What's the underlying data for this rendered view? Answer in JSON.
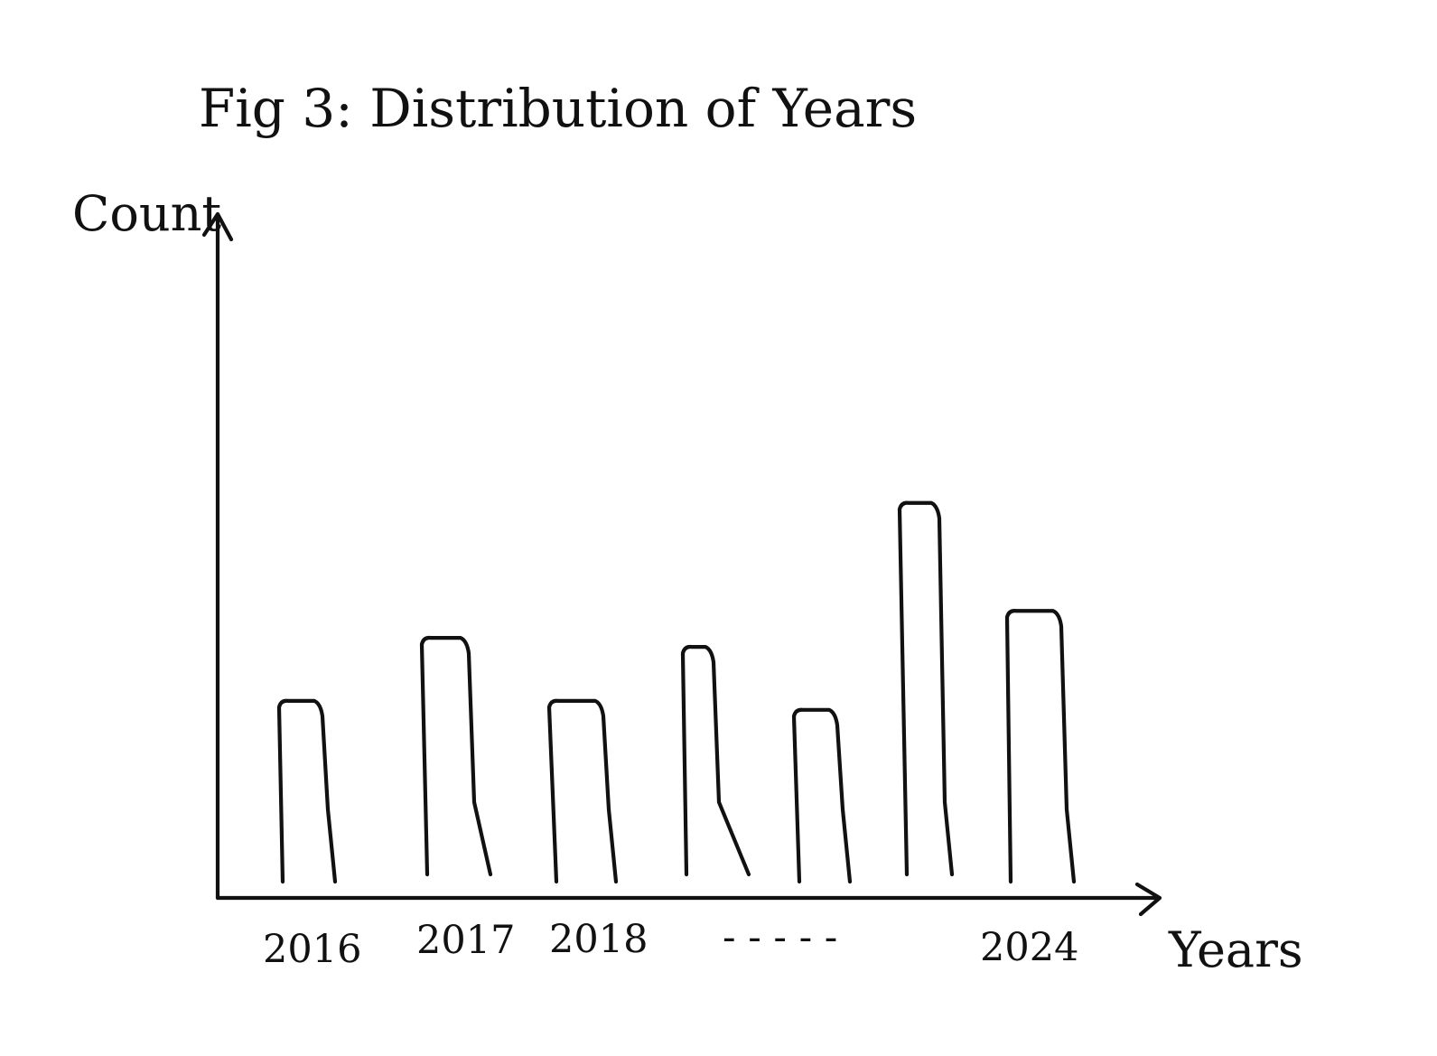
{
  "chart_data": {
    "type": "bar",
    "title": "Fig 3: Distribution of Years",
    "xlabel": "Years",
    "ylabel": "Count",
    "tick_labels": [
      "2016",
      "2017",
      "2018",
      "- - - - -",
      "2024"
    ],
    "categories": [
      "2016",
      "2017",
      "",
      "2018",
      "",
      "",
      "2024"
    ],
    "values": [
      2.2,
      2.9,
      2.2,
      2.8,
      2.1,
      4.4,
      3.2
    ],
    "ylim": [
      0,
      7.6
    ],
    "grid": false,
    "legend": "none",
    "colors": {
      "ink": "#111111",
      "background": "#ffffff"
    }
  }
}
